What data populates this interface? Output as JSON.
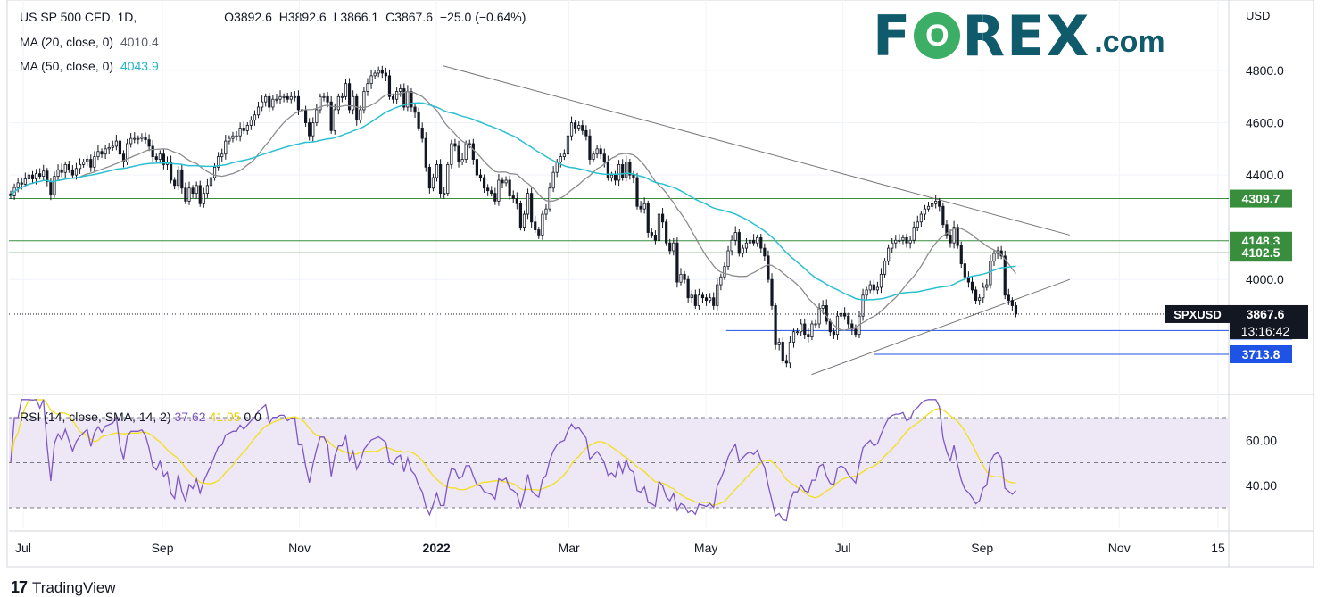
{
  "legend": {
    "symbol": "US SP 500 CFD, 1D,",
    "open": "O3892.6",
    "high": "H3892.6",
    "low": "L3866.1",
    "close": "C3867.6",
    "change": "−25.0 (−0.64%)",
    "ma20_label": "MA (20, close, 0)",
    "ma20_value": "4010.4",
    "ma50_label": "MA (50, close, 0)",
    "ma50_value": "4043.9"
  },
  "rsi_legend": {
    "label": "RSI (14, close, SMA, 14, 2)",
    "rsi_value": "37.62",
    "sma_value": "41.05",
    "extra": "0 0"
  },
  "logo": {
    "word_left": "F",
    "word_o": "O",
    "word_right": "REX",
    "domain": ".com"
  },
  "branding": "TradingView",
  "currency": "USD",
  "colors": {
    "candle_up": "#131722",
    "candle_down": "#131722",
    "ma20": "#8c8c8c",
    "ma50": "#29c0d1",
    "rsi": "#7e57c2",
    "rsi_sma": "#f2e01a",
    "rsi_band": "#ede7f6",
    "resistance": "#388e3c",
    "support": "#1e53e5",
    "trend": "#777777",
    "price_tag": "#131722"
  },
  "chart_data": {
    "type": "candlestick",
    "symbol": "SPXUSD",
    "y_range": [
      3560,
      5070
    ],
    "y_ticks": [
      4000.0,
      4400.0,
      4600.0,
      4800.0
    ],
    "y_tick_labels": [
      "4000.0",
      "4400.0",
      "4600.0",
      "4800.0"
    ],
    "x_labels": [
      "Jul",
      "Sep",
      "Nov",
      "2022",
      "Mar",
      "May",
      "Jul",
      "Sep",
      "Nov",
      "15"
    ],
    "x_label_dates": [
      "2021-07-01",
      "2021-09-01",
      "2021-11-01",
      "2022-01-01",
      "2022-03-01",
      "2022-05-01",
      "2022-07-01",
      "2022-09-01",
      "2022-11-01",
      "2022-12-15"
    ],
    "last_date": "2022-09-16",
    "closes": [
      4320,
      4352,
      4370,
      4365,
      4385,
      4400,
      4385,
      4405,
      4395,
      4415,
      4375,
      4325,
      4395,
      4420,
      4410,
      4440,
      4420,
      4400,
      4425,
      4440,
      4450,
      4460,
      4430,
      4470,
      4490,
      4480,
      4500,
      4505,
      4510,
      4530,
      4480,
      4450,
      4520,
      4540,
      4540,
      4540,
      4545,
      4535,
      4510,
      4470,
      4460,
      4480,
      4440,
      4450,
      4380,
      4360,
      4420,
      4350,
      4300,
      4350,
      4330,
      4360,
      4290,
      4330,
      4360,
      4390,
      4430,
      4470,
      4480,
      4530,
      4540,
      4550,
      4550,
      4580,
      4570,
      4590,
      4610,
      4630,
      4660,
      4680,
      4700,
      4660,
      4690,
      4690,
      4700,
      4700,
      4690,
      4700,
      4700,
      4650,
      4650,
      4600,
      4550,
      4600,
      4650,
      4700,
      4700,
      4680,
      4570,
      4650,
      4700,
      4700,
      4750,
      4650,
      4700,
      4610,
      4650,
      4720,
      4750,
      4780,
      4790,
      4800,
      4790,
      4780,
      4700,
      4690,
      4720,
      4730,
      4660,
      4720,
      4660,
      4640,
      4580,
      4540,
      4430,
      4350,
      4390,
      4440,
      4330,
      4330,
      4440,
      4520,
      4510,
      4450,
      4460,
      4520,
      4520,
      4460,
      4400,
      4390,
      4350,
      4340,
      4330,
      4300,
      4380,
      4370,
      4380,
      4320,
      4310,
      4290,
      4200,
      4250,
      4330,
      4220,
      4190,
      4170,
      4250,
      4270,
      4350,
      4410,
      4450,
      4470,
      4480,
      4550,
      4600,
      4580,
      4590,
      4570,
      4550,
      4460,
      4480,
      4500,
      4480,
      4450,
      4390,
      4400,
      4380,
      4440,
      4390,
      4450,
      4400,
      4390,
      4280,
      4270,
      4290,
      4180,
      4170,
      4150,
      4250,
      4220,
      4140,
      4110,
      4140,
      3990,
      4020,
      4000,
      3930,
      3940,
      3900,
      3940,
      3930,
      3920,
      3930,
      3900,
      3980,
      4010,
      4050,
      4110,
      4150,
      4180,
      4100,
      4120,
      4140,
      4150,
      4140,
      4160,
      4120,
      4090,
      4000,
      3900,
      3750,
      3760,
      3690,
      3680,
      3760,
      3800,
      3800,
      3830,
      3790,
      3780,
      3830,
      3830,
      3890,
      3900,
      3840,
      3800,
      3790,
      3860,
      3870,
      3860,
      3830,
      3810,
      3790,
      3860,
      3940,
      3960,
      3980,
      3960,
      3970,
      4020,
      4070,
      4120,
      4140,
      4150,
      4150,
      4160,
      4140,
      4150,
      4200,
      4220,
      4250,
      4270,
      4280,
      4290,
      4300,
      4280,
      4210,
      4170,
      4140,
      4200,
      4130,
      4060,
      4010,
      3990,
      3960,
      3920,
      3930,
      3970,
      3980,
      4070,
      4100,
      4110,
      4090,
      3940,
      3920,
      3900,
      3867.6
    ],
    "ma20_last": 4010.4,
    "ma50_last": 4043.9,
    "last_close": 3867.6,
    "horizontal_levels": [
      {
        "value": 4309.7,
        "label": "4309.7",
        "kind": "resistance"
      },
      {
        "value": 4148.3,
        "label": "4148.3",
        "kind": "resistance"
      },
      {
        "value": 4102.5,
        "label": "4102.5",
        "kind": "resistance"
      },
      {
        "value": 3804.6,
        "label": "3804.6",
        "kind": "support"
      },
      {
        "value": 3713.8,
        "label": "3713.8",
        "kind": "support"
      }
    ],
    "trendlines": [
      {
        "name": "descending-resistance",
        "from": [
          "2022-01-04",
          4818
        ],
        "to": [
          "2022-10-10",
          4170
        ]
      },
      {
        "name": "ascending-support",
        "from": [
          "2022-06-17",
          3636
        ],
        "to": [
          "2022-10-10",
          4000
        ]
      }
    ],
    "last_price_label": "3867.6",
    "symbol_label": "SPXUSD",
    "countdown": "13:16:42",
    "rsi": {
      "y_range": [
        0,
        100
      ],
      "upper": 70,
      "middle": 50,
      "lower": 30,
      "tick_labels": [
        "60.00",
        "40.00"
      ],
      "tick_values": [
        60,
        40
      ],
      "last_rsi": 37.62,
      "last_sma": 41.05
    }
  }
}
